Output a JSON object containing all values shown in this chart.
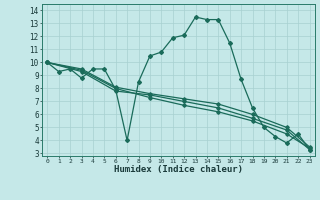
{
  "xlabel": "Humidex (Indice chaleur)",
  "bg_color": "#c5e8e8",
  "grid_color": "#a8d0d0",
  "line_color": "#1a6b5a",
  "xlim": [
    -0.5,
    23.5
  ],
  "ylim": [
    2.8,
    14.5
  ],
  "xticks": [
    0,
    1,
    2,
    3,
    4,
    5,
    6,
    7,
    8,
    9,
    10,
    11,
    12,
    13,
    14,
    15,
    16,
    17,
    18,
    19,
    20,
    21,
    22,
    23
  ],
  "yticks": [
    3,
    4,
    5,
    6,
    7,
    8,
    9,
    10,
    11,
    12,
    13,
    14
  ],
  "series1": [
    [
      0,
      10.0
    ],
    [
      1,
      9.3
    ],
    [
      2,
      9.5
    ],
    [
      3,
      8.8
    ],
    [
      4,
      9.5
    ],
    [
      5,
      9.5
    ],
    [
      6,
      7.9
    ],
    [
      7,
      4.0
    ],
    [
      8,
      8.5
    ],
    [
      9,
      10.5
    ],
    [
      10,
      10.8
    ],
    [
      11,
      11.9
    ],
    [
      12,
      12.1
    ],
    [
      13,
      13.5
    ],
    [
      14,
      13.3
    ],
    [
      15,
      13.3
    ],
    [
      16,
      11.5
    ],
    [
      17,
      8.7
    ],
    [
      18,
      6.5
    ],
    [
      19,
      5.0
    ],
    [
      20,
      4.3
    ],
    [
      21,
      3.8
    ],
    [
      22,
      4.5
    ],
    [
      23,
      3.3
    ]
  ],
  "series2": [
    [
      0,
      10.0
    ],
    [
      3,
      9.3
    ],
    [
      6,
      7.8
    ],
    [
      9,
      7.5
    ],
    [
      12,
      7.0
    ],
    [
      15,
      6.5
    ],
    [
      18,
      5.7
    ],
    [
      21,
      4.8
    ],
    [
      23,
      3.3
    ]
  ],
  "series3": [
    [
      0,
      10.0
    ],
    [
      3,
      9.4
    ],
    [
      6,
      8.0
    ],
    [
      9,
      7.3
    ],
    [
      12,
      6.7
    ],
    [
      15,
      6.2
    ],
    [
      18,
      5.5
    ],
    [
      21,
      4.5
    ],
    [
      23,
      3.4
    ]
  ],
  "series4": [
    [
      0,
      10.0
    ],
    [
      3,
      9.5
    ],
    [
      6,
      8.1
    ],
    [
      9,
      7.6
    ],
    [
      12,
      7.2
    ],
    [
      15,
      6.8
    ],
    [
      18,
      6.0
    ],
    [
      21,
      5.0
    ],
    [
      23,
      3.5
    ]
  ]
}
